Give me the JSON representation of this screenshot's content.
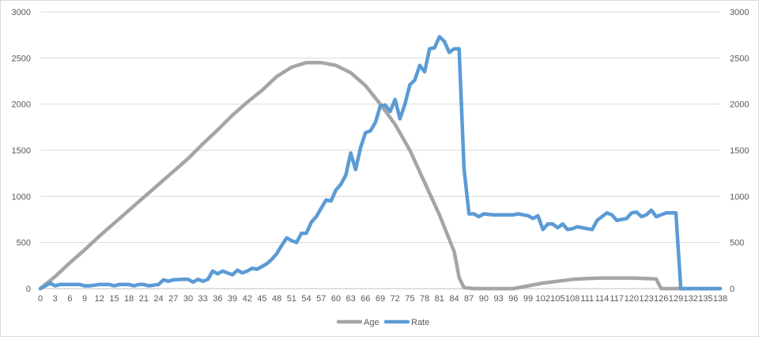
{
  "chart_data": {
    "type": "line",
    "title": "",
    "xlabel": "",
    "ylabel": "",
    "ylim": [
      0,
      3000
    ],
    "y_ticks": [
      0,
      500,
      1000,
      1500,
      2000,
      2500,
      3000
    ],
    "y_ticks_right": [
      0,
      500,
      1000,
      1500,
      2000,
      2500,
      3000
    ],
    "xlim": [
      0,
      138
    ],
    "x_ticks": [
      0,
      3,
      6,
      9,
      12,
      15,
      18,
      21,
      24,
      27,
      30,
      33,
      36,
      39,
      42,
      45,
      48,
      51,
      54,
      57,
      60,
      63,
      66,
      69,
      72,
      75,
      78,
      81,
      84,
      87,
      90,
      93,
      96,
      99,
      102,
      105,
      108,
      111,
      114,
      117,
      120,
      123,
      126,
      129,
      132,
      135,
      138
    ],
    "grid": "horizontal",
    "legend": "bottom",
    "series": [
      {
        "name": "Age",
        "color": "#a5a5a5",
        "points": [
          [
            0,
            0
          ],
          [
            3,
            130
          ],
          [
            6,
            280
          ],
          [
            9,
            420
          ],
          [
            12,
            570
          ],
          [
            15,
            710
          ],
          [
            18,
            850
          ],
          [
            21,
            990
          ],
          [
            24,
            1130
          ],
          [
            27,
            1270
          ],
          [
            30,
            1410
          ],
          [
            33,
            1570
          ],
          [
            36,
            1720
          ],
          [
            39,
            1880
          ],
          [
            42,
            2020
          ],
          [
            45,
            2150
          ],
          [
            48,
            2300
          ],
          [
            51,
            2400
          ],
          [
            54,
            2450
          ],
          [
            57,
            2450
          ],
          [
            60,
            2420
          ],
          [
            63,
            2340
          ],
          [
            66,
            2200
          ],
          [
            69,
            2000
          ],
          [
            72,
            1780
          ],
          [
            75,
            1500
          ],
          [
            78,
            1150
          ],
          [
            81,
            800
          ],
          [
            84,
            400
          ],
          [
            85,
            120
          ],
          [
            86,
            10
          ],
          [
            88,
            0
          ],
          [
            90,
            0
          ],
          [
            93,
            0
          ],
          [
            96,
            0
          ],
          [
            99,
            30
          ],
          [
            102,
            60
          ],
          [
            105,
            80
          ],
          [
            108,
            100
          ],
          [
            111,
            110
          ],
          [
            114,
            115
          ],
          [
            117,
            115
          ],
          [
            120,
            115
          ],
          [
            123,
            110
          ],
          [
            125,
            105
          ],
          [
            126,
            0
          ],
          [
            129,
            0
          ],
          [
            132,
            0
          ],
          [
            135,
            0
          ],
          [
            138,
            0
          ]
        ]
      },
      {
        "name": "Rate",
        "color": "#5b9bd5",
        "points": [
          [
            0,
            0
          ],
          [
            1,
            30
          ],
          [
            2,
            60
          ],
          [
            3,
            30
          ],
          [
            4,
            45
          ],
          [
            6,
            45
          ],
          [
            8,
            45
          ],
          [
            9,
            30
          ],
          [
            10,
            30
          ],
          [
            12,
            45
          ],
          [
            14,
            45
          ],
          [
            15,
            30
          ],
          [
            16,
            45
          ],
          [
            18,
            45
          ],
          [
            19,
            30
          ],
          [
            20,
            45
          ],
          [
            21,
            45
          ],
          [
            22,
            30
          ],
          [
            24,
            45
          ],
          [
            25,
            95
          ],
          [
            26,
            80
          ],
          [
            27,
            95
          ],
          [
            29,
            100
          ],
          [
            30,
            100
          ],
          [
            31,
            70
          ],
          [
            32,
            100
          ],
          [
            33,
            80
          ],
          [
            34,
            100
          ],
          [
            35,
            190
          ],
          [
            36,
            160
          ],
          [
            37,
            190
          ],
          [
            38,
            170
          ],
          [
            39,
            150
          ],
          [
            40,
            200
          ],
          [
            41,
            170
          ],
          [
            42,
            190
          ],
          [
            43,
            220
          ],
          [
            44,
            210
          ],
          [
            45,
            240
          ],
          [
            46,
            270
          ],
          [
            47,
            320
          ],
          [
            48,
            380
          ],
          [
            49,
            470
          ],
          [
            50,
            550
          ],
          [
            51,
            520
          ],
          [
            52,
            500
          ],
          [
            53,
            600
          ],
          [
            54,
            600
          ],
          [
            55,
            720
          ],
          [
            56,
            780
          ],
          [
            57,
            870
          ],
          [
            58,
            960
          ],
          [
            59,
            950
          ],
          [
            60,
            1070
          ],
          [
            61,
            1130
          ],
          [
            62,
            1230
          ],
          [
            63,
            1470
          ],
          [
            64,
            1290
          ],
          [
            65,
            1530
          ],
          [
            66,
            1690
          ],
          [
            67,
            1710
          ],
          [
            68,
            1800
          ],
          [
            69,
            1980
          ],
          [
            70,
            1990
          ],
          [
            71,
            1920
          ],
          [
            72,
            2050
          ],
          [
            73,
            1840
          ],
          [
            74,
            2000
          ],
          [
            75,
            2210
          ],
          [
            76,
            2260
          ],
          [
            77,
            2420
          ],
          [
            78,
            2350
          ],
          [
            79,
            2600
          ],
          [
            80,
            2610
          ],
          [
            81,
            2730
          ],
          [
            82,
            2680
          ],
          [
            83,
            2560
          ],
          [
            84,
            2600
          ],
          [
            85,
            2600
          ],
          [
            86,
            1300
          ],
          [
            87,
            810
          ],
          [
            88,
            810
          ],
          [
            89,
            780
          ],
          [
            90,
            810
          ],
          [
            92,
            800
          ],
          [
            94,
            800
          ],
          [
            96,
            800
          ],
          [
            97,
            810
          ],
          [
            98,
            800
          ],
          [
            99,
            790
          ],
          [
            100,
            760
          ],
          [
            101,
            790
          ],
          [
            102,
            640
          ],
          [
            103,
            700
          ],
          [
            104,
            700
          ],
          [
            105,
            660
          ],
          [
            106,
            700
          ],
          [
            107,
            640
          ],
          [
            108,
            650
          ],
          [
            109,
            670
          ],
          [
            110,
            660
          ],
          [
            111,
            650
          ],
          [
            112,
            640
          ],
          [
            113,
            740
          ],
          [
            114,
            780
          ],
          [
            115,
            820
          ],
          [
            116,
            800
          ],
          [
            117,
            740
          ],
          [
            118,
            750
          ],
          [
            119,
            760
          ],
          [
            120,
            820
          ],
          [
            121,
            830
          ],
          [
            122,
            780
          ],
          [
            123,
            800
          ],
          [
            124,
            850
          ],
          [
            125,
            780
          ],
          [
            126,
            800
          ],
          [
            127,
            820
          ],
          [
            128,
            820
          ],
          [
            129,
            820
          ],
          [
            130,
            0
          ],
          [
            131,
            0
          ],
          [
            134,
            0
          ],
          [
            136,
            0
          ],
          [
            138,
            0
          ]
        ]
      }
    ]
  }
}
